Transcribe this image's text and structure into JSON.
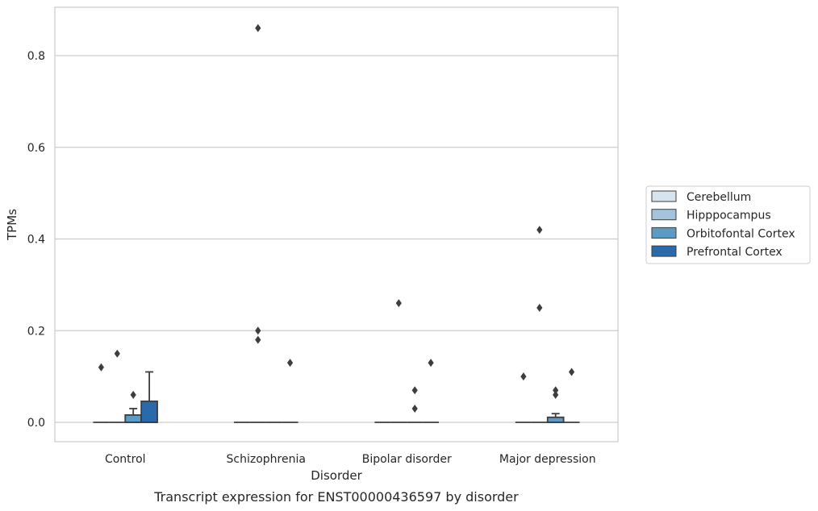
{
  "chart_data": {
    "type": "box",
    "title": "",
    "caption": "Transcript expression for ENST00000436597 by disorder",
    "xlabel": "Disorder",
    "ylabel": "TPMs",
    "ylim": [
      -0.042,
      0.905
    ],
    "yticks": [
      "0.0",
      "0.2",
      "0.4",
      "0.6",
      "0.8"
    ],
    "ytick_values": [
      0.0,
      0.2,
      0.4,
      0.6,
      0.8
    ],
    "grid": "horizontal",
    "legend_position": "right",
    "categories": [
      "Control",
      "Schizophrenia",
      "Bipolar disorder",
      "Major depression"
    ],
    "series": [
      {
        "name": "Cerebellum",
        "color": "#d6e4f0",
        "boxes": [
          {
            "q1": 0,
            "median": 0,
            "q3": 0,
            "whisker_low": 0,
            "whisker_high": 0,
            "outliers": [
              0.12
            ]
          },
          {
            "q1": 0,
            "median": 0,
            "q3": 0,
            "whisker_low": 0,
            "whisker_high": 0,
            "outliers": []
          },
          {
            "q1": 0,
            "median": 0,
            "q3": 0,
            "whisker_low": 0,
            "whisker_high": 0,
            "outliers": []
          },
          {
            "q1": 0,
            "median": 0,
            "q3": 0,
            "whisker_low": 0,
            "whisker_high": 0,
            "outliers": [
              0.1
            ]
          }
        ]
      },
      {
        "name": "Hipppocampus",
        "color": "#a3c4dc",
        "boxes": [
          {
            "q1": 0,
            "median": 0,
            "q3": 0,
            "whisker_low": 0,
            "whisker_high": 0,
            "outliers": [
              0.15
            ]
          },
          {
            "q1": 0,
            "median": 0,
            "q3": 0,
            "whisker_low": 0,
            "whisker_high": 0,
            "outliers": [
              0.86,
              0.2,
              0.18
            ]
          },
          {
            "q1": 0,
            "median": 0,
            "q3": 0,
            "whisker_low": 0,
            "whisker_high": 0,
            "outliers": [
              0.26
            ]
          },
          {
            "q1": 0,
            "median": 0,
            "q3": 0,
            "whisker_low": 0,
            "whisker_high": 0,
            "outliers": [
              0.42,
              0.25
            ]
          }
        ]
      },
      {
        "name": "Orbitofontal Cortex",
        "color": "#5b9bc6",
        "boxes": [
          {
            "q1": 0,
            "median": 0,
            "q3": 0.016,
            "whisker_low": 0,
            "whisker_high": 0.03,
            "outliers": [
              0.06
            ]
          },
          {
            "q1": 0,
            "median": 0,
            "q3": 0,
            "whisker_low": 0,
            "whisker_high": 0,
            "outliers": []
          },
          {
            "q1": 0,
            "median": 0,
            "q3": 0,
            "whisker_low": 0,
            "whisker_high": 0,
            "outliers": [
              0.07,
              0.03
            ]
          },
          {
            "q1": 0,
            "median": 0,
            "q3": 0.011,
            "whisker_low": 0,
            "whisker_high": 0.019,
            "outliers": [
              0.07,
              0.06
            ]
          }
        ]
      },
      {
        "name": "Prefrontal Cortex",
        "color": "#2a6aab",
        "boxes": [
          {
            "q1": 0,
            "median": 0,
            "q3": 0.046,
            "whisker_low": 0,
            "whisker_high": 0.11,
            "outliers": []
          },
          {
            "q1": 0,
            "median": 0,
            "q3": 0,
            "whisker_low": 0,
            "whisker_high": 0,
            "outliers": [
              0.13
            ]
          },
          {
            "q1": 0,
            "median": 0,
            "q3": 0,
            "whisker_low": 0,
            "whisker_high": 0,
            "outliers": [
              0.13
            ]
          },
          {
            "q1": 0,
            "median": 0,
            "q3": 0,
            "whisker_low": 0,
            "whisker_high": 0,
            "outliers": [
              0.11
            ]
          }
        ]
      }
    ]
  }
}
